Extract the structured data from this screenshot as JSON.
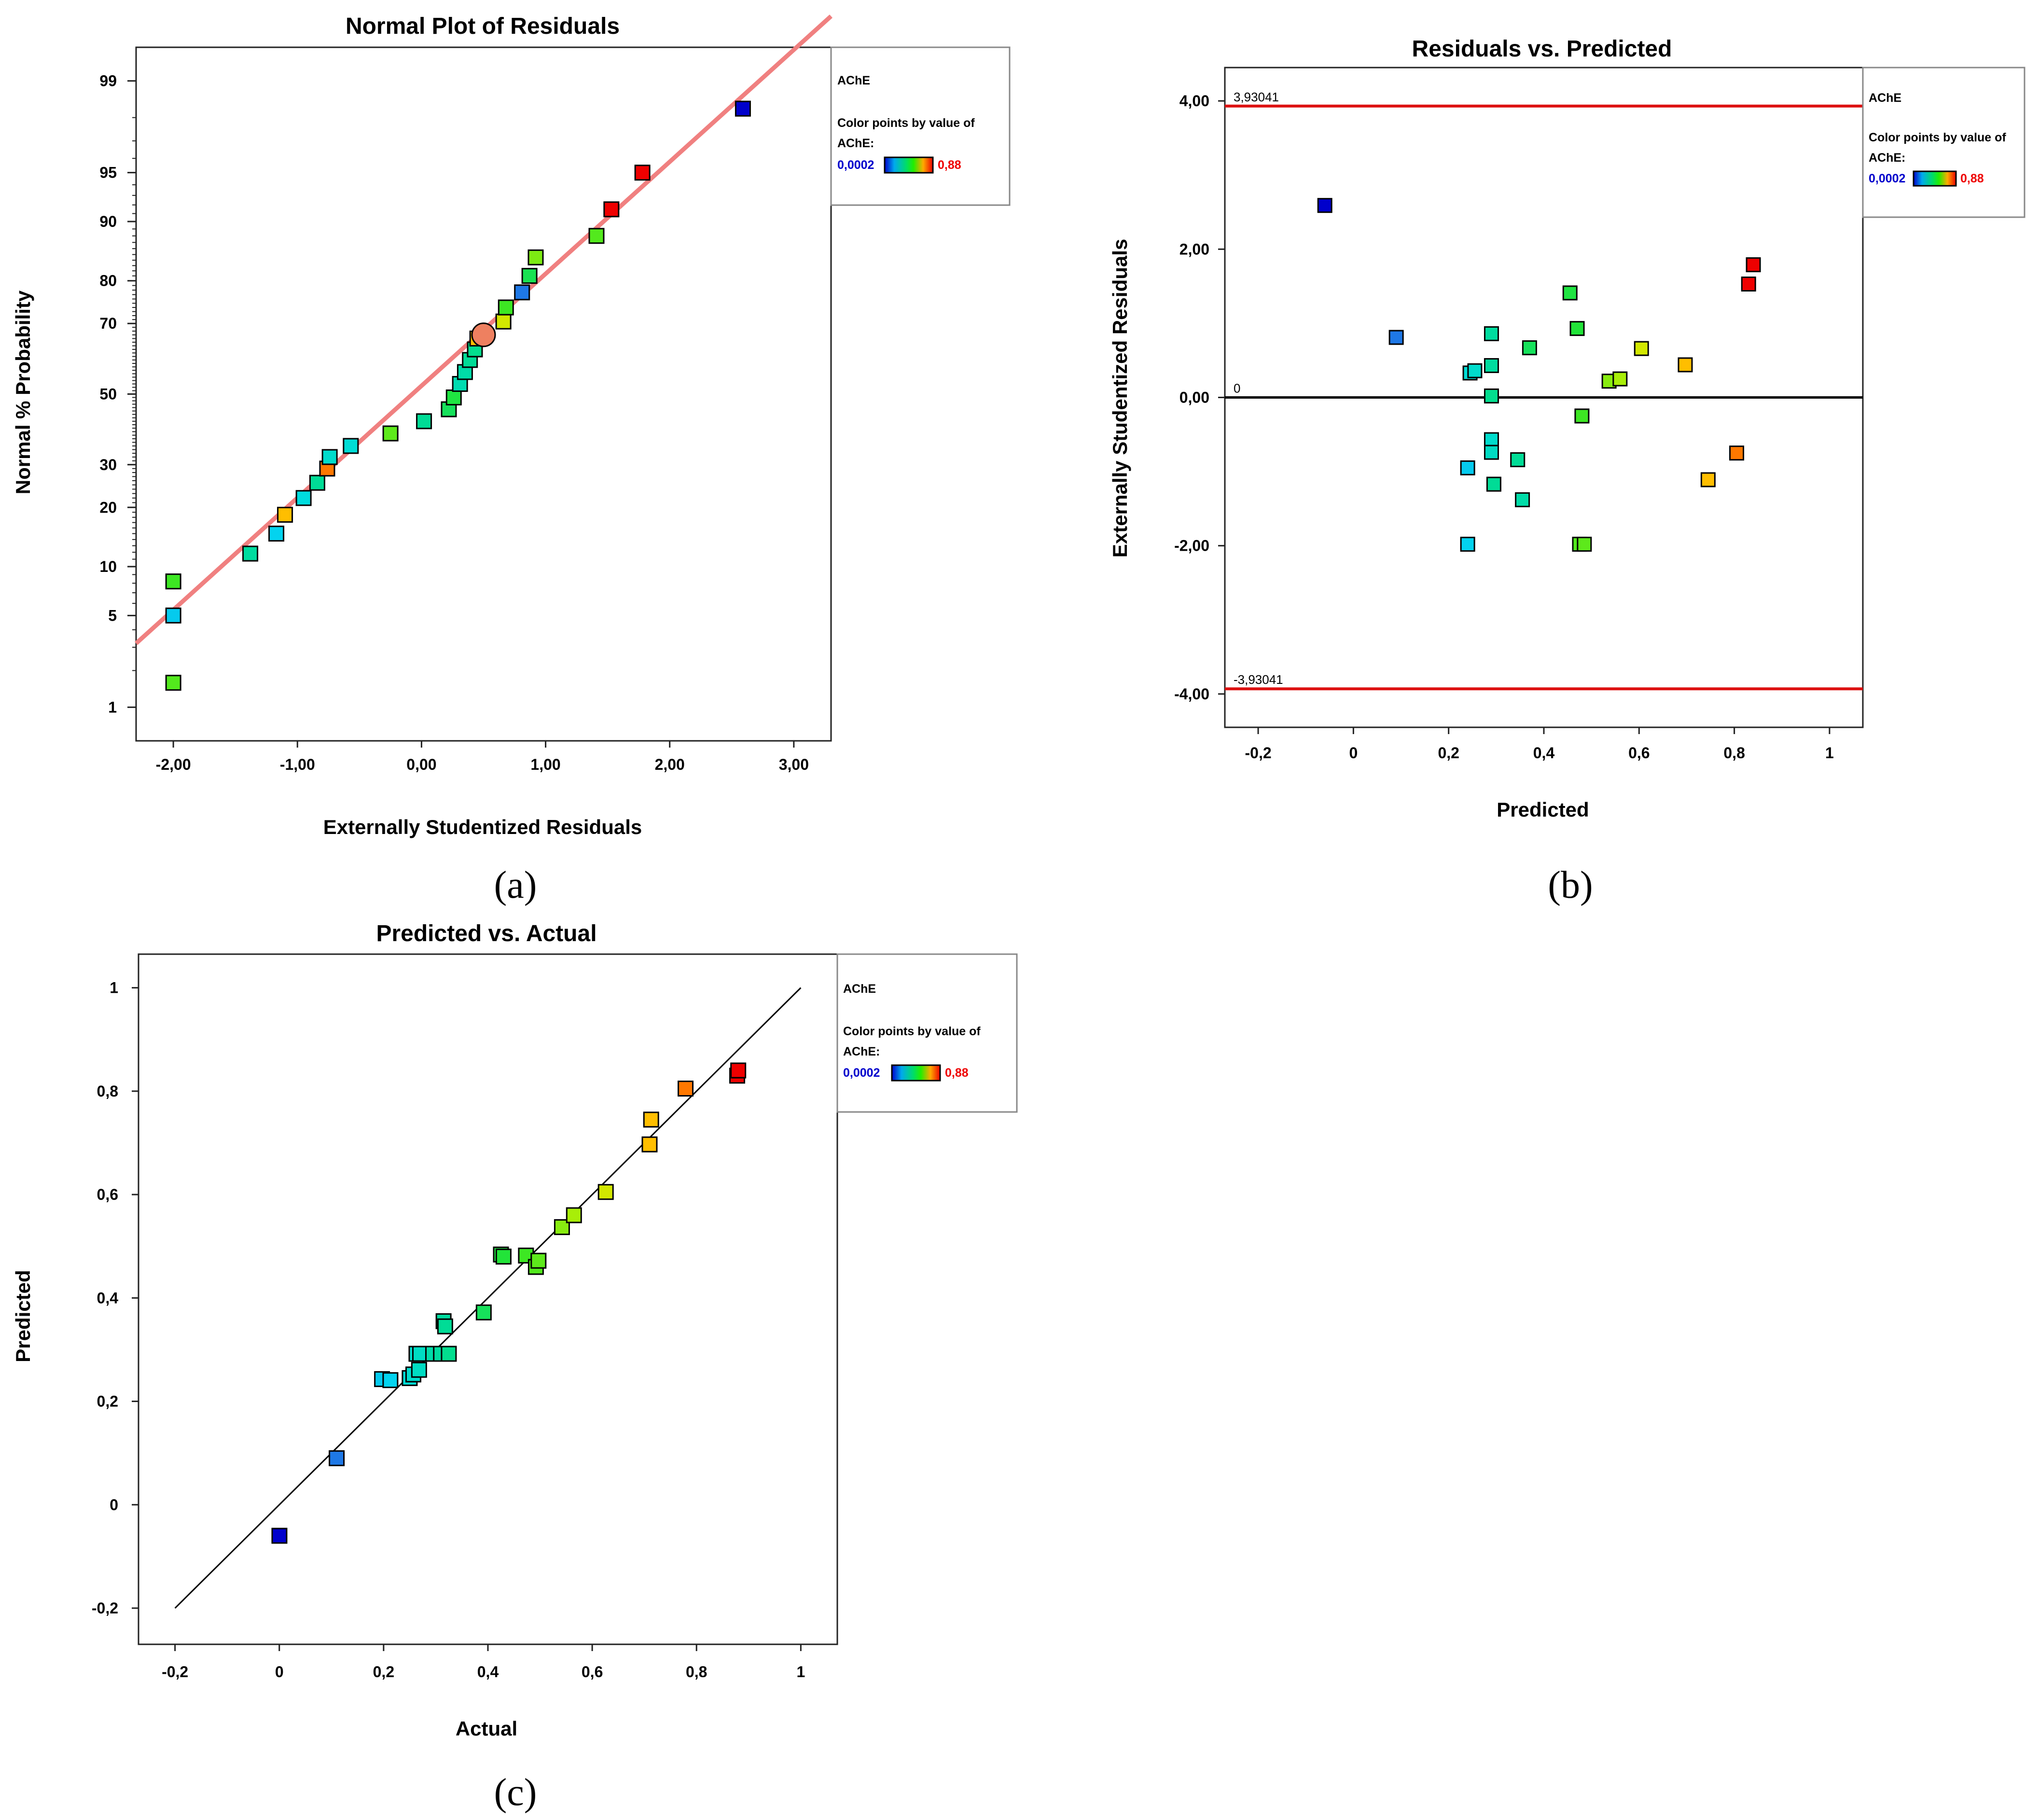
{
  "legend": {
    "title": "AChE",
    "subtitle_line1": "Color points by value of",
    "subtitle_line2": "AChE:",
    "min_label": "0,0002",
    "max_label": "0,88",
    "min_color": "#0000cc",
    "max_color": "#ee0000"
  },
  "chart_data": [
    {
      "id": "a",
      "type": "scatter",
      "title": "Normal Plot of Residuals",
      "xlabel": "Externally Studentized Residuals",
      "ylabel": "Normal % Probability",
      "caption": "(a)",
      "xlim": [
        -2.3,
        3.3
      ],
      "xticks": [
        -2,
        -1,
        0,
        1,
        2,
        3
      ],
      "xtick_labels": [
        "-2,00",
        "-1,00",
        "0,00",
        "1,00",
        "2,00",
        "3,00"
      ],
      "yscale": "normal-probability",
      "yticks": [
        1,
        5,
        10,
        20,
        30,
        50,
        70,
        80,
        90,
        95,
        99
      ],
      "ytick_labels": [
        "1",
        "5",
        "10",
        "20",
        "30",
        "50",
        "70",
        "80",
        "90",
        "95",
        "99"
      ],
      "reference_line": {
        "x": [
          -2.3,
          3.3
        ],
        "y": [
          3.2,
          99.75
        ],
        "color": "#f08080"
      },
      "points": [
        {
          "x": -2.0,
          "y": 1.6,
          "c": 0.49
        },
        {
          "x": -2.0,
          "y": 5.0,
          "c": 0.2
        },
        {
          "x": -2.0,
          "y": 8.2,
          "c": 0.47
        },
        {
          "x": -1.38,
          "y": 11.8,
          "c": 0.31
        },
        {
          "x": -1.17,
          "y": 15.0,
          "c": 0.21
        },
        {
          "x": -1.1,
          "y": 18.5,
          "c": 0.71
        },
        {
          "x": -0.95,
          "y": 22.0,
          "c": 0.24
        },
        {
          "x": -0.84,
          "y": 25.5,
          "c": 0.32
        },
        {
          "x": -0.76,
          "y": 29.0,
          "c": 0.78
        },
        {
          "x": -0.74,
          "y": 32.0,
          "c": 0.26
        },
        {
          "x": -0.57,
          "y": 35.0,
          "c": 0.25
        },
        {
          "x": -0.25,
          "y": 38.5,
          "c": 0.5
        },
        {
          "x": 0.02,
          "y": 42.0,
          "c": 0.32
        },
        {
          "x": 0.22,
          "y": 45.5,
          "c": 0.39
        },
        {
          "x": 0.26,
          "y": 49.0,
          "c": 0.42
        },
        {
          "x": 0.31,
          "y": 53.0,
          "c": 0.29
        },
        {
          "x": 0.35,
          "y": 56.5,
          "c": 0.3
        },
        {
          "x": 0.39,
          "y": 60.0,
          "c": 0.32
        },
        {
          "x": 0.43,
          "y": 63.0,
          "c": 0.33
        },
        {
          "x": 0.45,
          "y": 66.0,
          "c": 0.71
        },
        {
          "x": 0.5,
          "y": 67.0,
          "c": 0.8,
          "highlight": true
        },
        {
          "x": 0.66,
          "y": 70.5,
          "c": 0.62
        },
        {
          "x": 0.68,
          "y": 74.0,
          "c": 0.47
        },
        {
          "x": 0.81,
          "y": 77.5,
          "c": 0.11
        },
        {
          "x": 0.87,
          "y": 81.0,
          "c": 0.4
        },
        {
          "x": 0.92,
          "y": 84.5,
          "c": 0.53
        },
        {
          "x": 1.41,
          "y": 88.0,
          "c": 0.49
        },
        {
          "x": 1.53,
          "y": 91.5,
          "c": 0.88
        },
        {
          "x": 1.78,
          "y": 95.0,
          "c": 0.88
        },
        {
          "x": 2.59,
          "y": 98.3,
          "c": 0.0002
        }
      ]
    },
    {
      "id": "b",
      "type": "scatter",
      "title": "Residuals vs. Predicted",
      "xlabel": "Predicted",
      "ylabel": "Externally Studentized Residuals",
      "caption": "(b)",
      "xlim": [
        -0.27,
        1.07
      ],
      "ylim": [
        -4.45,
        4.45
      ],
      "xticks": [
        -0.2,
        0,
        0.2,
        0.4,
        0.6,
        0.8,
        1
      ],
      "xtick_labels": [
        "-0,2",
        "0",
        "0,2",
        "0,4",
        "0,6",
        "0,8",
        "1"
      ],
      "yticks": [
        -4,
        -2,
        0,
        2,
        4
      ],
      "ytick_labels": [
        "-4,00",
        "-2,00",
        "0,00",
        "2,00",
        "4,00"
      ],
      "reference_lines": [
        {
          "y": 3.93041,
          "label": "3,93041",
          "color": "#dd1111"
        },
        {
          "y": 0,
          "label": "0",
          "color": "#000000"
        },
        {
          "y": -3.93041,
          "label": "-3,93041",
          "color": "#dd1111"
        }
      ],
      "points": [
        {
          "x": -0.06,
          "y": 2.59,
          "c": 0.0002
        },
        {
          "x": 0.09,
          "y": 0.81,
          "c": 0.11
        },
        {
          "x": 0.24,
          "y": -0.95,
          "c": 0.2
        },
        {
          "x": 0.24,
          "y": -1.98,
          "c": 0.21
        },
        {
          "x": 0.245,
          "y": 0.33,
          "c": 0.25
        },
        {
          "x": 0.255,
          "y": 0.36,
          "c": 0.26
        },
        {
          "x": 0.29,
          "y": 0.86,
          "c": 0.31
        },
        {
          "x": 0.29,
          "y": 0.43,
          "c": 0.31
        },
        {
          "x": 0.29,
          "y": 0.02,
          "c": 0.33
        },
        {
          "x": 0.29,
          "y": -0.57,
          "c": 0.26
        },
        {
          "x": 0.29,
          "y": -0.74,
          "c": 0.27
        },
        {
          "x": 0.295,
          "y": -1.17,
          "c": 0.32
        },
        {
          "x": 0.345,
          "y": -0.84,
          "c": 0.32
        },
        {
          "x": 0.355,
          "y": -1.38,
          "c": 0.3
        },
        {
          "x": 0.37,
          "y": 0.67,
          "c": 0.39
        },
        {
          "x": 0.455,
          "y": 1.41,
          "c": 0.42
        },
        {
          "x": 0.47,
          "y": 0.93,
          "c": 0.43
        },
        {
          "x": 0.475,
          "y": -1.98,
          "c": 0.49
        },
        {
          "x": 0.48,
          "y": -0.25,
          "c": 0.47
        },
        {
          "x": 0.485,
          "y": -1.98,
          "c": 0.5
        },
        {
          "x": 0.537,
          "y": 0.22,
          "c": 0.54
        },
        {
          "x": 0.56,
          "y": 0.25,
          "c": 0.57
        },
        {
          "x": 0.605,
          "y": 0.66,
          "c": 0.62
        },
        {
          "x": 0.697,
          "y": 0.44,
          "c": 0.71
        },
        {
          "x": 0.745,
          "y": -1.11,
          "c": 0.71
        },
        {
          "x": 0.805,
          "y": -0.75,
          "c": 0.78
        },
        {
          "x": 0.83,
          "y": 1.53,
          "c": 0.88
        },
        {
          "x": 0.84,
          "y": 1.79,
          "c": 0.88
        }
      ]
    },
    {
      "id": "c",
      "type": "scatter",
      "title": "Predicted vs. Actual",
      "xlabel": "Actual",
      "ylabel": "Predicted",
      "caption": "(c)",
      "xlim": [
        -0.27,
        1.07
      ],
      "ylim": [
        -0.27,
        1.065
      ],
      "xticks": [
        -0.2,
        0,
        0.2,
        0.4,
        0.6,
        0.8,
        1
      ],
      "xtick_labels": [
        "-0,2",
        "0",
        "0,2",
        "0,4",
        "0,6",
        "0,8",
        "1"
      ],
      "yticks": [
        -0.2,
        0,
        0.2,
        0.4,
        0.6,
        0.8,
        1
      ],
      "ytick_labels": [
        "-0,2",
        "0",
        "0,2",
        "0,4",
        "0,6",
        "0,8",
        "1"
      ],
      "reference_line": {
        "x": [
          -0.2,
          1.0
        ],
        "y": [
          -0.2,
          1.0
        ],
        "color": "#000000"
      },
      "points": [
        {
          "x": 0.0002,
          "y": -0.06,
          "c": 0.0002
        },
        {
          "x": 0.11,
          "y": 0.09,
          "c": 0.11
        },
        {
          "x": 0.197,
          "y": 0.243,
          "c": 0.2
        },
        {
          "x": 0.213,
          "y": 0.241,
          "c": 0.21
        },
        {
          "x": 0.25,
          "y": 0.245,
          "c": 0.25
        },
        {
          "x": 0.257,
          "y": 0.252,
          "c": 0.26
        },
        {
          "x": 0.263,
          "y": 0.292,
          "c": 0.26
        },
        {
          "x": 0.268,
          "y": 0.261,
          "c": 0.27
        },
        {
          "x": 0.27,
          "y": 0.292,
          "c": 0.27
        },
        {
          "x": 0.295,
          "y": 0.292,
          "c": 0.3
        },
        {
          "x": 0.31,
          "y": 0.292,
          "c": 0.31
        },
        {
          "x": 0.315,
          "y": 0.355,
          "c": 0.31
        },
        {
          "x": 0.318,
          "y": 0.345,
          "c": 0.32
        },
        {
          "x": 0.325,
          "y": 0.292,
          "c": 0.33
        },
        {
          "x": 0.392,
          "y": 0.372,
          "c": 0.39
        },
        {
          "x": 0.425,
          "y": 0.484,
          "c": 0.42
        },
        {
          "x": 0.43,
          "y": 0.48,
          "c": 0.43
        },
        {
          "x": 0.473,
          "y": 0.482,
          "c": 0.47
        },
        {
          "x": 0.492,
          "y": 0.46,
          "c": 0.49
        },
        {
          "x": 0.497,
          "y": 0.472,
          "c": 0.5
        },
        {
          "x": 0.542,
          "y": 0.537,
          "c": 0.54
        },
        {
          "x": 0.565,
          "y": 0.56,
          "c": 0.57
        },
        {
          "x": 0.626,
          "y": 0.605,
          "c": 0.62
        },
        {
          "x": 0.71,
          "y": 0.697,
          "c": 0.71
        },
        {
          "x": 0.713,
          "y": 0.745,
          "c": 0.71
        },
        {
          "x": 0.779,
          "y": 0.805,
          "c": 0.78
        },
        {
          "x": 0.878,
          "y": 0.83,
          "c": 0.88
        },
        {
          "x": 0.88,
          "y": 0.84,
          "c": 0.88
        }
      ]
    }
  ]
}
